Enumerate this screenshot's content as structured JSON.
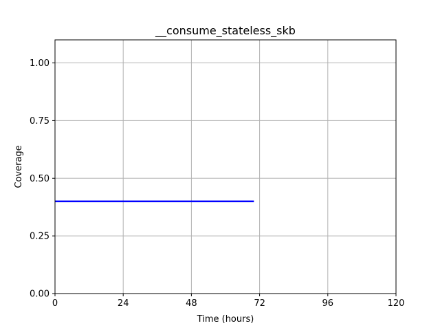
{
  "chart_data": {
    "type": "line",
    "title": "__consume_stateless_skb",
    "xlabel": "Time (hours)",
    "ylabel": "Coverage",
    "xlim": [
      0,
      120
    ],
    "ylim": [
      0,
      1.1
    ],
    "xticks": [
      0,
      24,
      48,
      72,
      96,
      120
    ],
    "xtick_labels": [
      "0",
      "24",
      "48",
      "72",
      "96",
      "120"
    ],
    "yticks": [
      0,
      0.25,
      0.5,
      0.75,
      1.0
    ],
    "ytick_labels": [
      "0.00",
      "0.25",
      "0.50",
      "0.75",
      "1.00"
    ],
    "grid": true,
    "series": [
      {
        "color": "#0000ff",
        "x": [
          0,
          70
        ],
        "y": [
          0.4,
          0.4
        ]
      }
    ]
  }
}
